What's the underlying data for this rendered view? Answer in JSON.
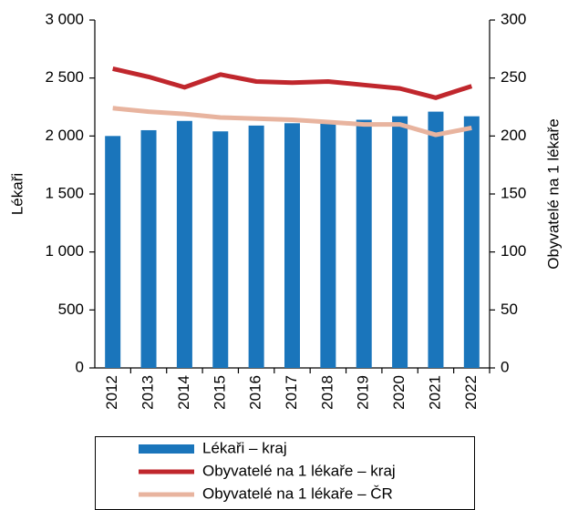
{
  "chart_data": {
    "type": "combo",
    "categories": [
      "2012",
      "2013",
      "2014",
      "2015",
      "2016",
      "2017",
      "2018",
      "2019",
      "2020",
      "2021",
      "2022"
    ],
    "series": [
      {
        "name": "Lékaři – kraj",
        "type": "bar",
        "color": "#1a75bb",
        "values": [
          2000,
          2050,
          2130,
          2040,
          2090,
          2110,
          2110,
          2140,
          2170,
          2210,
          2170
        ]
      },
      {
        "name": "Obyvatelé na 1 lékaře – kraj",
        "type": "line",
        "axis": "y2",
        "color": "#c0272d",
        "values": [
          258,
          251,
          242,
          253,
          247,
          246,
          247,
          244,
          241,
          233,
          243
        ]
      },
      {
        "name": "Obyvatelé na 1 lékaře – ČR",
        "type": "line",
        "axis": "y2",
        "color": "#e8b49f",
        "values": [
          224,
          221,
          219,
          216,
          215,
          214,
          212,
          210,
          210,
          201,
          207
        ]
      }
    ],
    "ylabel": "Lékaři",
    "y2label": "Obyvatelé na 1 lékaře",
    "ylim": [
      0,
      3000
    ],
    "yticks": [
      0,
      500,
      {
        "value": 1000,
        "label": "1 000"
      },
      {
        "value": 1500,
        "label": "1 500"
      },
      {
        "value": 2000,
        "label": "2 000"
      },
      {
        "value": 2500,
        "label": "2 500"
      },
      {
        "value": 3000,
        "label": "3 000"
      }
    ],
    "y2lim": [
      0,
      300
    ],
    "y2ticks": [
      0,
      50,
      100,
      150,
      200,
      250,
      300
    ],
    "legend": "bottom"
  }
}
